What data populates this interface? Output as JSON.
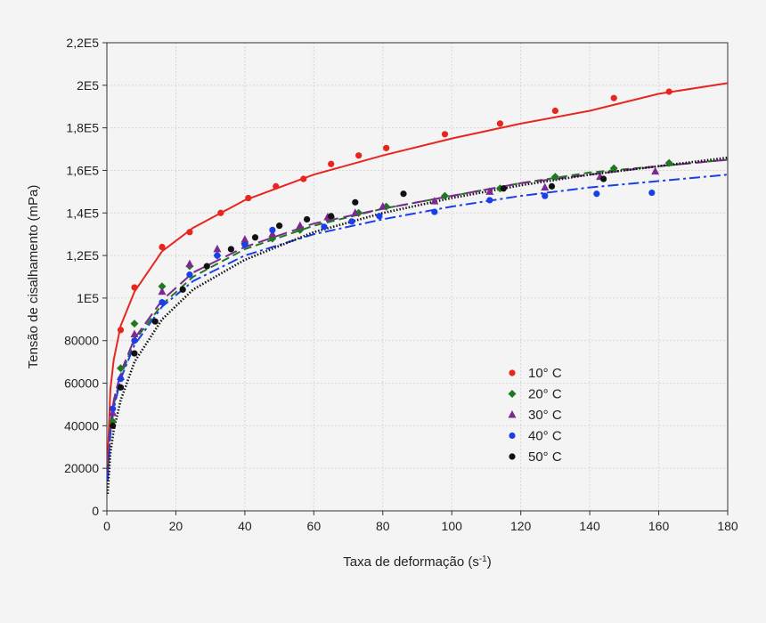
{
  "chart_data": {
    "type": "scatter",
    "title": "",
    "xlabel": "Taxa de deformação (s",
    "xlabel_sup": "-1",
    "xlabel_suffix": ")",
    "ylabel": "Tensão de cisalhamento (mPa)",
    "xlim": [
      0,
      180
    ],
    "ylim": [
      0,
      220000
    ],
    "x_ticks": [
      0,
      20,
      40,
      60,
      80,
      100,
      120,
      140,
      160,
      180
    ],
    "x_tick_labels": [
      "0",
      "20",
      "40",
      "60",
      "80",
      "100",
      "120",
      "140",
      "160",
      "180"
    ],
    "y_ticks": [
      0,
      20000,
      40000,
      60000,
      80000,
      100000,
      120000,
      140000,
      160000,
      180000,
      200000,
      220000
    ],
    "y_tick_labels": [
      "0",
      "20000",
      "40000",
      "60000",
      "80000",
      "1E5",
      "1,2E5",
      "1,4E5",
      "1,6E5",
      "1,8E5",
      "2E5",
      "2,2E5"
    ],
    "grid": true,
    "legend_position": "lower-right",
    "series": [
      {
        "name": "10° C",
        "color": "#e8251f",
        "marker": "circle",
        "fit_line": "solid",
        "points": [
          [
            1.7,
            48000
          ],
          [
            4,
            85000
          ],
          [
            8,
            105000
          ],
          [
            16,
            124000
          ],
          [
            24,
            131000
          ],
          [
            33,
            140000
          ],
          [
            41,
            147000
          ],
          [
            49,
            152500
          ],
          [
            57,
            156000
          ],
          [
            65,
            163000
          ],
          [
            73,
            167000
          ],
          [
            81,
            170500
          ],
          [
            98,
            177000
          ],
          [
            114,
            182000
          ],
          [
            130,
            188000
          ],
          [
            147,
            194000
          ],
          [
            163,
            197000
          ]
        ],
        "fit": [
          [
            0.2,
            22000
          ],
          [
            1,
            57000
          ],
          [
            2,
            71000
          ],
          [
            4,
            87000
          ],
          [
            8,
            103000
          ],
          [
            16,
            122000
          ],
          [
            25,
            133000
          ],
          [
            40,
            146000
          ],
          [
            60,
            158000
          ],
          [
            80,
            167000
          ],
          [
            100,
            175000
          ],
          [
            120,
            182000
          ],
          [
            140,
            188000
          ],
          [
            160,
            196000
          ],
          [
            180,
            201000
          ]
        ]
      },
      {
        "name": "20° C",
        "color": "#1f7a1f",
        "marker": "diamond",
        "fit_line": "dash",
        "points": [
          [
            1.7,
            42000
          ],
          [
            4,
            67000
          ],
          [
            8,
            88000
          ],
          [
            16,
            105500
          ],
          [
            24,
            115000
          ],
          [
            32,
            120000
          ],
          [
            40,
            125500
          ],
          [
            48,
            128000
          ],
          [
            56,
            132000
          ],
          [
            65,
            138000
          ],
          [
            73,
            140000
          ],
          [
            81,
            143000
          ],
          [
            98,
            148000
          ],
          [
            114,
            151500
          ],
          [
            130,
            157000
          ],
          [
            147,
            161000
          ],
          [
            163,
            163500
          ]
        ],
        "fit": [
          [
            0.2,
            15000
          ],
          [
            1,
            38000
          ],
          [
            2,
            50000
          ],
          [
            4,
            63000
          ],
          [
            8,
            80000
          ],
          [
            16,
            97000
          ],
          [
            25,
            110000
          ],
          [
            40,
            123000
          ],
          [
            60,
            134000
          ],
          [
            80,
            142000
          ],
          [
            100,
            148000
          ],
          [
            120,
            154000
          ],
          [
            140,
            159000
          ],
          [
            160,
            162000
          ],
          [
            180,
            165000
          ]
        ]
      },
      {
        "name": "30° C",
        "color": "#7b2a8f",
        "marker": "triangle",
        "fit_line": "longdash",
        "points": [
          [
            1.7,
            46000
          ],
          [
            4,
            63000
          ],
          [
            8,
            83000
          ],
          [
            16,
            103000
          ],
          [
            24,
            116000
          ],
          [
            32,
            123000
          ],
          [
            40,
            127500
          ],
          [
            48,
            130000
          ],
          [
            56,
            134000
          ],
          [
            64,
            138000
          ],
          [
            72,
            140000
          ],
          [
            80,
            143000
          ],
          [
            95,
            145500
          ],
          [
            111,
            150000
          ],
          [
            127,
            152000
          ],
          [
            143,
            157000
          ],
          [
            159,
            159500
          ]
        ],
        "fit": [
          [
            0.2,
            16000
          ],
          [
            1,
            40000
          ],
          [
            2,
            52000
          ],
          [
            4,
            65000
          ],
          [
            8,
            81000
          ],
          [
            16,
            99000
          ],
          [
            25,
            112000
          ],
          [
            40,
            124000
          ],
          [
            60,
            135000
          ],
          [
            80,
            142000
          ],
          [
            100,
            148000
          ],
          [
            120,
            154000
          ],
          [
            140,
            158000
          ],
          [
            160,
            162000
          ],
          [
            180,
            165000
          ]
        ]
      },
      {
        "name": "40° C",
        "color": "#1a3ee8",
        "marker": "circle",
        "fit_line": "dashdot",
        "points": [
          [
            1.7,
            48000
          ],
          [
            4,
            62000
          ],
          [
            8,
            80000
          ],
          [
            16,
            98000
          ],
          [
            24,
            111000
          ],
          [
            32,
            120000
          ],
          [
            40,
            125000
          ],
          [
            48,
            132000
          ],
          [
            63,
            133500
          ],
          [
            71,
            136000
          ],
          [
            79,
            138500
          ],
          [
            95,
            140500
          ],
          [
            111,
            146000
          ],
          [
            127,
            148000
          ],
          [
            142,
            149000
          ],
          [
            158,
            149500
          ]
        ],
        "fit": [
          [
            0.2,
            14000
          ],
          [
            1,
            36000
          ],
          [
            2,
            48000
          ],
          [
            4,
            62000
          ],
          [
            8,
            78000
          ],
          [
            16,
            96000
          ],
          [
            25,
            108000
          ],
          [
            40,
            120000
          ],
          [
            60,
            130000
          ],
          [
            80,
            137000
          ],
          [
            100,
            143000
          ],
          [
            120,
            148000
          ],
          [
            140,
            152000
          ],
          [
            160,
            155000
          ],
          [
            180,
            158000
          ]
        ]
      },
      {
        "name": "50° C",
        "color": "#111111",
        "marker": "circle",
        "fit_line": "dot",
        "points": [
          [
            1.7,
            40000
          ],
          [
            4,
            58000
          ],
          [
            8,
            74000
          ],
          [
            14,
            89000
          ],
          [
            22,
            104000
          ],
          [
            29,
            115000
          ],
          [
            36,
            123000
          ],
          [
            43,
            128500
          ],
          [
            50,
            134000
          ],
          [
            58,
            137000
          ],
          [
            65,
            138500
          ],
          [
            72,
            145000
          ],
          [
            86,
            149000
          ],
          [
            115,
            151500
          ],
          [
            129,
            152500
          ],
          [
            144,
            156000
          ]
        ],
        "fit": [
          [
            0.2,
            8000
          ],
          [
            1,
            27000
          ],
          [
            2,
            38000
          ],
          [
            4,
            52000
          ],
          [
            8,
            70000
          ],
          [
            16,
            90000
          ],
          [
            25,
            104000
          ],
          [
            40,
            118000
          ],
          [
            60,
            131000
          ],
          [
            80,
            140000
          ],
          [
            100,
            147000
          ],
          [
            120,
            153000
          ],
          [
            140,
            158000
          ],
          [
            160,
            162000
          ],
          [
            180,
            166000
          ]
        ]
      }
    ]
  }
}
